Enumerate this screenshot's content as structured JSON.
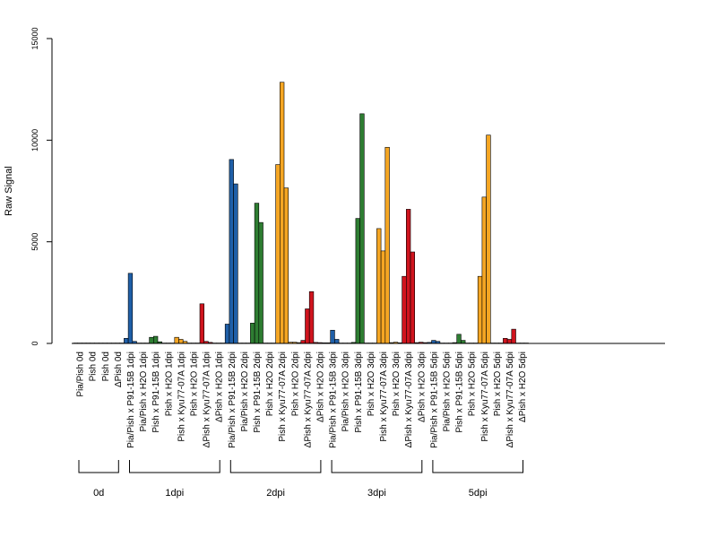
{
  "chart_data": {
    "type": "bar",
    "ylabel": "Raw Signal",
    "ylim": [
      0,
      15000
    ],
    "yticks": [
      0,
      5000,
      10000,
      15000
    ],
    "grid": false,
    "replicates_per_category": 3,
    "categories": [
      {
        "label": "Pia/Pish 0d",
        "group": "0d",
        "color": "#1f5fa8",
        "values": [
          20,
          20,
          20
        ]
      },
      {
        "label": "Pish 0d",
        "group": "0d",
        "color": "#1f5fa8",
        "values": [
          20,
          20,
          20
        ]
      },
      {
        "label": "Pish 0d",
        "group": "0d",
        "color": "#1f5fa8",
        "values": [
          20,
          20,
          20
        ]
      },
      {
        "label": "ΔPish 0d",
        "group": "0d",
        "color": "#1f5fa8",
        "values": [
          20,
          20,
          20
        ]
      },
      {
        "label": "Pia/Pish x P91-15B 1dpi",
        "group": "1dpi",
        "color": "#1f5fa8",
        "values": [
          250,
          3450,
          100
        ]
      },
      {
        "label": "Pia/Pish x H2O 1dpi",
        "group": "1dpi",
        "color": "#1f5fa8",
        "values": [
          20,
          20,
          20
        ]
      },
      {
        "label": "Pish x P91-15B 1dpi",
        "group": "1dpi",
        "color": "#2e7d32",
        "values": [
          300,
          350,
          80
        ]
      },
      {
        "label": "Pish x H2O 1dpi",
        "group": "1dpi",
        "color": "#2e7d32",
        "values": [
          20,
          20,
          20
        ]
      },
      {
        "label": "Pish x Kyu77-07A 1dpi",
        "group": "1dpi",
        "color": "#f5a623",
        "values": [
          300,
          200,
          100
        ]
      },
      {
        "label": "Pish x H2O 1dpi",
        "group": "1dpi",
        "color": "#f5a623",
        "values": [
          20,
          20,
          20
        ]
      },
      {
        "label": "ΔPish x Kyu77-07A 1dpi",
        "group": "1dpi",
        "color": "#d0141e",
        "values": [
          1950,
          100,
          50
        ]
      },
      {
        "label": "ΔPish x H2O 1dpi",
        "group": "1dpi",
        "color": "#d0141e",
        "values": [
          20,
          20,
          20
        ]
      },
      {
        "label": "Pia/Pish x P91-15B 2dpi",
        "group": "2dpi",
        "color": "#1f5fa8",
        "values": [
          950,
          9050,
          7850
        ]
      },
      {
        "label": "Pia/Pish x H2O 2dpi",
        "group": "2dpi",
        "color": "#1f5fa8",
        "values": [
          20,
          20,
          20
        ]
      },
      {
        "label": "Pish x P91-15B 2dpi",
        "group": "2dpi",
        "color": "#2e7d32",
        "values": [
          1000,
          6900,
          5950
        ]
      },
      {
        "label": "Pish x H2O 2dpi",
        "group": "2dpi",
        "color": "#2e7d32",
        "values": [
          20,
          20,
          20
        ]
      },
      {
        "label": "Pish x Kyu77-07A 2dpi",
        "group": "2dpi",
        "color": "#f5a623",
        "values": [
          8800,
          12850,
          7650
        ]
      },
      {
        "label": "Pish x H2O 2dpi",
        "group": "2dpi",
        "color": "#f5a623",
        "values": [
          60,
          60,
          40
        ]
      },
      {
        "label": "ΔPish x Kyu77-07A 2dpi",
        "group": "2dpi",
        "color": "#d0141e",
        "values": [
          150,
          1700,
          2550
        ]
      },
      {
        "label": "ΔPish x H2O 2dpi",
        "group": "2dpi",
        "color": "#d0141e",
        "values": [
          50,
          40,
          30
        ]
      },
      {
        "label": "Pia/Pish x P91-15B 3dpi",
        "group": "3dpi",
        "color": "#1f5fa8",
        "values": [
          30,
          650,
          200
        ]
      },
      {
        "label": "Pia/Pish x H2O 3dpi",
        "group": "3dpi",
        "color": "#1f5fa8",
        "values": [
          20,
          20,
          20
        ]
      },
      {
        "label": "Pish x P91-15B 3dpi",
        "group": "3dpi",
        "color": "#2e7d32",
        "values": [
          50,
          6150,
          11300
        ]
      },
      {
        "label": "Pish x H2O 3dpi",
        "group": "3dpi",
        "color": "#2e7d32",
        "values": [
          20,
          20,
          20
        ]
      },
      {
        "label": "Pish x Kyu77-07A 3dpi",
        "group": "3dpi",
        "color": "#f5a623",
        "values": [
          5650,
          4550,
          9650
        ]
      },
      {
        "label": "Pish x H2O 3dpi",
        "group": "3dpi",
        "color": "#f5a623",
        "values": [
          40,
          60,
          30
        ]
      },
      {
        "label": "ΔPish x Kyu77-07A 3dpi",
        "group": "3dpi",
        "color": "#d0141e",
        "values": [
          3300,
          6600,
          4500
        ]
      },
      {
        "label": "ΔPish x H2O 3dpi",
        "group": "3dpi",
        "color": "#d0141e",
        "values": [
          40,
          60,
          40
        ]
      },
      {
        "label": "Pia/Pish x P91-15B 5dpi",
        "group": "5dpi",
        "color": "#1f5fa8",
        "values": [
          50,
          150,
          100
        ]
      },
      {
        "label": "Pia/Pish x H2O 5dpi",
        "group": "5dpi",
        "color": "#1f5fa8",
        "values": [
          20,
          20,
          20
        ]
      },
      {
        "label": "Pish x P91-15B 5dpi",
        "group": "5dpi",
        "color": "#2e7d32",
        "values": [
          40,
          450,
          150
        ]
      },
      {
        "label": "Pish x H2O 5dpi",
        "group": "5dpi",
        "color": "#2e7d32",
        "values": [
          20,
          20,
          20
        ]
      },
      {
        "label": "Pish x Kyu77-07A 5dpi",
        "group": "5dpi",
        "color": "#f5a623",
        "values": [
          3300,
          7200,
          10250
        ]
      },
      {
        "label": "Pish x H2O 5dpi",
        "group": "5dpi",
        "color": "#f5a623",
        "values": [
          20,
          20,
          20
        ]
      },
      {
        "label": "ΔPish x Kyu77-07A 5dpi",
        "group": "5dpi",
        "color": "#d0141e",
        "values": [
          250,
          200,
          700
        ]
      },
      {
        "label": "ΔPish x H2O 5dpi",
        "group": "5dpi",
        "color": "#d0141e",
        "values": [
          20,
          20,
          20
        ]
      }
    ],
    "groups": [
      "0d",
      "1dpi",
      "2dpi",
      "3dpi",
      "5dpi"
    ]
  }
}
